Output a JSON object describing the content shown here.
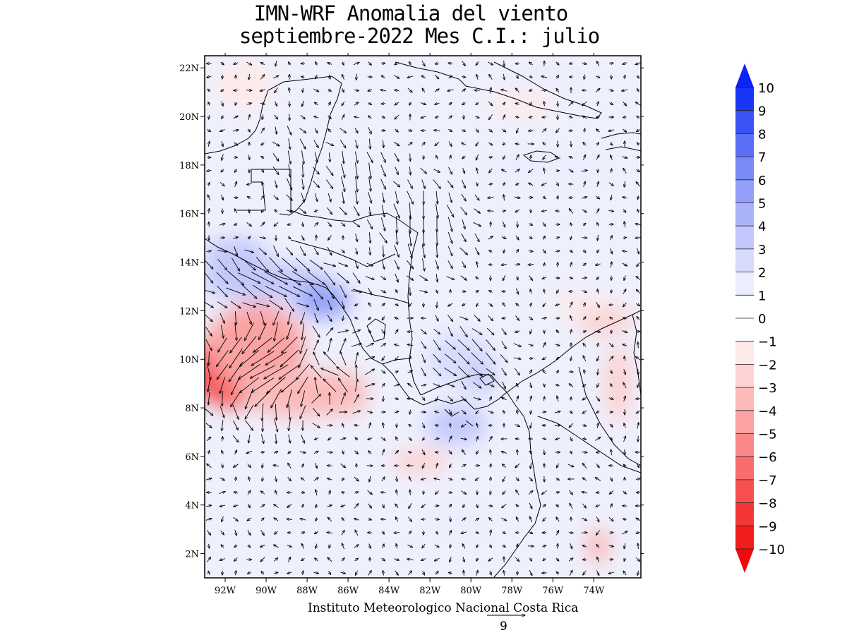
{
  "title_line1": "IMN-WRF Anomalia del viento",
  "title_line2": "septiembre-2022 Mes C.I.: julio",
  "credit": "Instituto Meteorologico Nacional Costa Rica",
  "reference_vector": {
    "label": "9"
  },
  "map": {
    "lon_range": [
      -93.0,
      -71.7
    ],
    "lat_range": [
      1.0,
      22.5
    ],
    "lon_ticks": [
      {
        "value": -92,
        "label": "92W"
      },
      {
        "value": -90,
        "label": "90W"
      },
      {
        "value": -88,
        "label": "88W"
      },
      {
        "value": -86,
        "label": "86W"
      },
      {
        "value": -84,
        "label": "84W"
      },
      {
        "value": -82,
        "label": "82W"
      },
      {
        "value": -80,
        "label": "80W"
      },
      {
        "value": -78,
        "label": "78W"
      },
      {
        "value": -76,
        "label": "76W"
      },
      {
        "value": -74,
        "label": "74W"
      }
    ],
    "lat_ticks": [
      {
        "value": 2,
        "label": "2N"
      },
      {
        "value": 4,
        "label": "4N"
      },
      {
        "value": 6,
        "label": "6N"
      },
      {
        "value": 8,
        "label": "8N"
      },
      {
        "value": 10,
        "label": "10N"
      },
      {
        "value": 12,
        "label": "12N"
      },
      {
        "value": 14,
        "label": "14N"
      },
      {
        "value": 16,
        "label": "16N"
      },
      {
        "value": 18,
        "label": "18N"
      },
      {
        "value": 20,
        "label": "20N"
      },
      {
        "value": 22,
        "label": "22N"
      }
    ],
    "anomaly_regions": [
      {
        "lon": -91.3,
        "lat": 9.6,
        "rlon": 2.6,
        "rlat": 1.6,
        "value": -7
      },
      {
        "lon": -90.5,
        "lat": 10.5,
        "rlon": 2.4,
        "rlat": 1.8,
        "value": -4
      },
      {
        "lon": -88.5,
        "lat": 8.6,
        "rlon": 2.8,
        "rlat": 1.0,
        "value": -3
      },
      {
        "lon": -86.5,
        "lat": 8.6,
        "rlon": 1.5,
        "rlat": 0.9,
        "value": -3
      },
      {
        "lon": -90.0,
        "lat": 13.2,
        "rlon": 3.2,
        "rlat": 0.8,
        "value": 3
      },
      {
        "lon": -87.2,
        "lat": 12.4,
        "rlon": 1.3,
        "rlat": 0.7,
        "value": 5
      },
      {
        "lon": -91.5,
        "lat": 14.2,
        "rlon": 1.6,
        "rlat": 0.8,
        "value": 3
      },
      {
        "lon": -80.5,
        "lat": 10.0,
        "rlon": 1.6,
        "rlat": 1.1,
        "value": 2
      },
      {
        "lon": -80.7,
        "lat": 7.3,
        "rlon": 1.5,
        "rlat": 0.8,
        "value": 3
      },
      {
        "lon": -79.5,
        "lat": 9.2,
        "rlon": 0.7,
        "rlat": 0.6,
        "value": 3
      },
      {
        "lon": -76.5,
        "lat": 17.8,
        "rlon": 3.5,
        "rlat": 0.8,
        "value": 1
      },
      {
        "lon": -73.5,
        "lat": 11.6,
        "rlon": 1.4,
        "rlat": 0.6,
        "value": -2
      },
      {
        "lon": -72.8,
        "lat": 9.0,
        "rlon": 0.7,
        "rlat": 1.6,
        "value": -2
      },
      {
        "lon": -73.8,
        "lat": 2.3,
        "rlon": 0.6,
        "rlat": 0.7,
        "value": -3
      },
      {
        "lon": -76.5,
        "lat": 21.5,
        "rlon": 1.8,
        "rlat": 0.8,
        "value": 1
      },
      {
        "lon": -91.0,
        "lat": 21.3,
        "rlon": 1.4,
        "rlat": 1.0,
        "value": -1
      },
      {
        "lon": -77.5,
        "lat": 20.5,
        "rlon": 1.5,
        "rlat": 0.6,
        "value": -1
      },
      {
        "lon": -82.5,
        "lat": 5.8,
        "rlon": 1.4,
        "rlat": 0.5,
        "value": -2
      },
      {
        "lon": -88.5,
        "lat": 4.0,
        "rlon": 1.5,
        "rlat": 0.6,
        "value": 1
      },
      {
        "lon": -75.8,
        "lat": 6.5,
        "rlon": 0.6,
        "rlat": 1.2,
        "value": 1
      },
      {
        "lon": -74.8,
        "lat": 12.3,
        "rlon": 1.5,
        "rlat": 0.4,
        "value": -1
      },
      {
        "lon": -80.5,
        "lat": 3.3,
        "rlon": 1.8,
        "rlat": 0.6,
        "value": 1
      }
    ],
    "wind_regions": [
      {
        "lon": -89.5,
        "lat": 13.2,
        "rlon": 3.5,
        "rlat": 1.1,
        "u": 1.0,
        "v": -0.55,
        "speed": 1.6
      },
      {
        "lon": -90.0,
        "lat": 9.6,
        "rlon": 3.2,
        "rlat": 2.3,
        "u": -1.0,
        "v": -0.5,
        "speed": 1.6
      },
      {
        "lon": -86.8,
        "lat": 9.5,
        "rlon": 1.8,
        "rlat": 1.6,
        "u": -1.0,
        "v": 0.4,
        "speed": 1.0
      },
      {
        "lon": -80.2,
        "lat": 10.2,
        "rlon": 2.0,
        "rlat": 1.4,
        "u": 0.6,
        "v": -0.6,
        "speed": 0.9
      },
      {
        "lon": -82.5,
        "lat": 15.5,
        "rlon": 2.5,
        "rlat": 2.0,
        "u": 0.0,
        "v": -1.0,
        "speed": 0.9
      },
      {
        "lon": -85.5,
        "lat": 17.5,
        "rlon": 2.0,
        "rlat": 1.5,
        "u": 0.1,
        "v": -1.0,
        "speed": 0.8
      },
      {
        "lon": -88.5,
        "lat": 18.0,
        "rlon": 1.2,
        "rlat": 1.5,
        "u": 0.0,
        "v": -1.0,
        "speed": 0.7
      }
    ]
  },
  "colorbar": {
    "levels": [
      {
        "label": "10",
        "color": "#0a24f5"
      },
      {
        "label": "9",
        "color": "#1a36f5"
      },
      {
        "label": "8",
        "color": "#3a52f6"
      },
      {
        "label": "7",
        "color": "#5c6ff7"
      },
      {
        "label": "6",
        "color": "#7a89f8"
      },
      {
        "label": "5",
        "color": "#939ff9"
      },
      {
        "label": "4",
        "color": "#aab3fa"
      },
      {
        "label": "3",
        "color": "#c2c8fb"
      },
      {
        "label": "2",
        "color": "#d8dcfc"
      },
      {
        "label": "1",
        "color": "#eceefd"
      },
      {
        "label": "0",
        "color": "#ffffff"
      },
      {
        "label": "−1",
        "color": "#feeaea"
      },
      {
        "label": "−2",
        "color": "#fdd2d2"
      },
      {
        "label": "−3",
        "color": "#fcbaba"
      },
      {
        "label": "−4",
        "color": "#fba2a2"
      },
      {
        "label": "−5",
        "color": "#fa8888"
      },
      {
        "label": "−6",
        "color": "#f86c6c"
      },
      {
        "label": "−7",
        "color": "#f65050"
      },
      {
        "label": "−8",
        "color": "#f43636"
      },
      {
        "label": "−9",
        "color": "#f21e1e"
      },
      {
        "label": "−10",
        "color": "#f00a0a"
      }
    ]
  }
}
